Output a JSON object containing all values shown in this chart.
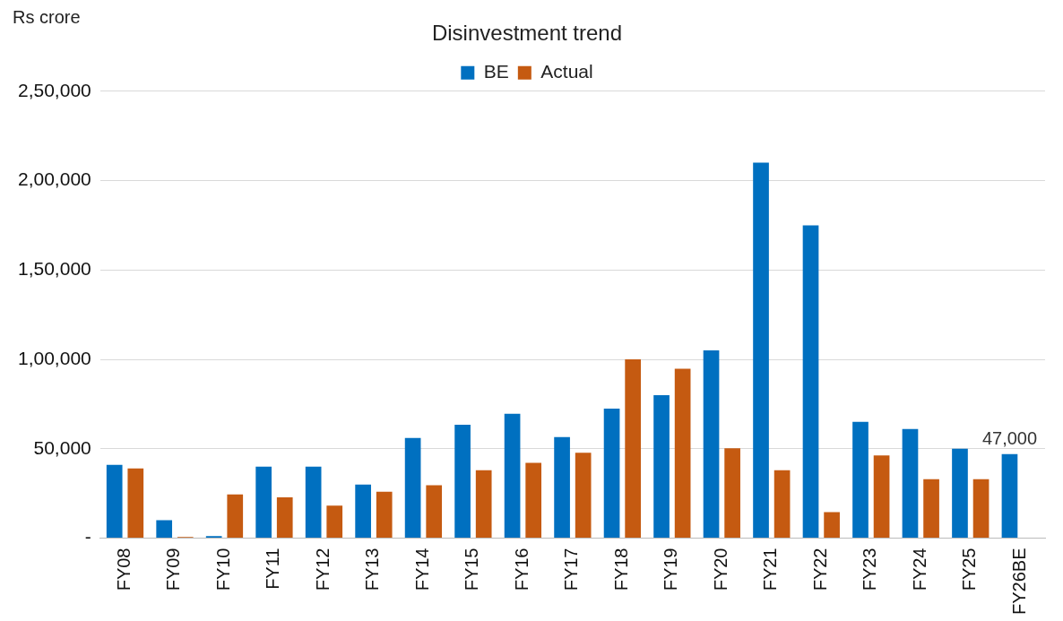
{
  "chart_data": {
    "type": "bar",
    "title": "Disinvestment trend",
    "ylabel": "Rs crore",
    "categories": [
      "FY08",
      "FY09",
      "FY10",
      "FY11",
      "FY12",
      "FY13",
      "FY14",
      "FY15",
      "FY16",
      "FY17",
      "FY18",
      "FY19",
      "FY20",
      "FY21",
      "FY22",
      "FY23",
      "FY24",
      "FY25",
      "FY26BE"
    ],
    "series": [
      {
        "name": "BE",
        "color": "#0070c0",
        "values": [
          41000,
          10000,
          1100,
          40000,
          40000,
          30000,
          56000,
          63400,
          69500,
          56500,
          72500,
          80000,
          105000,
          210000,
          175000,
          65000,
          61000,
          50000,
          47000
        ],
        "value_labels": [
          null,
          null,
          null,
          null,
          null,
          null,
          null,
          null,
          null,
          null,
          null,
          null,
          null,
          null,
          null,
          null,
          null,
          null,
          "47,000"
        ]
      },
      {
        "name": "Actual",
        "color": "#c55a11",
        "values": [
          39000,
          600,
          24400,
          22800,
          18200,
          26000,
          29600,
          38000,
          42100,
          47800,
          100000,
          94700,
          50300,
          38000,
          14600,
          46300,
          33000,
          33000,
          null
        ]
      }
    ],
    "ylim": [
      0,
      250000
    ],
    "yticks": [
      {
        "value": 0,
        "label": "-"
      },
      {
        "value": 50000,
        "label": "50,000"
      },
      {
        "value": 100000,
        "label": "1,00,000"
      },
      {
        "value": 150000,
        "label": "1,50,000"
      },
      {
        "value": 200000,
        "label": "2,00,000"
      },
      {
        "value": 250000,
        "label": "2,50,000"
      }
    ],
    "grid": "y",
    "legend": "top"
  }
}
